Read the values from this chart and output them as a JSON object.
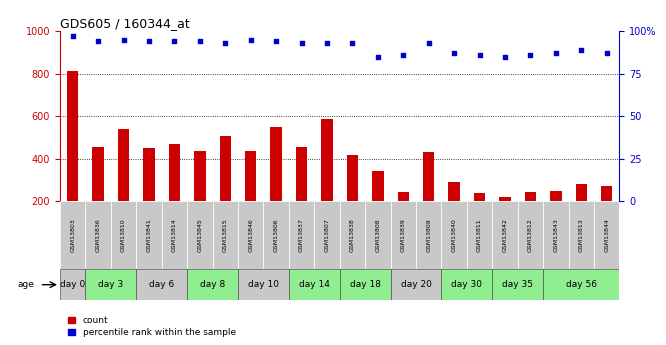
{
  "title": "GDS605 / 160344_at",
  "samples": [
    "GSM13803",
    "GSM13836",
    "GSM13810",
    "GSM13841",
    "GSM13814",
    "GSM13845",
    "GSM13815",
    "GSM13846",
    "GSM13806",
    "GSM13837",
    "GSM13807",
    "GSM13838",
    "GSM13808",
    "GSM13839",
    "GSM13809",
    "GSM13840",
    "GSM13811",
    "GSM13842",
    "GSM13812",
    "GSM13843",
    "GSM13813",
    "GSM13844"
  ],
  "counts": [
    810,
    455,
    540,
    450,
    470,
    435,
    505,
    435,
    550,
    455,
    585,
    415,
    340,
    245,
    430,
    290,
    240,
    220,
    245,
    250,
    280,
    270
  ],
  "percentiles": [
    97,
    94,
    95,
    94,
    94,
    94,
    93,
    95,
    94,
    93,
    93,
    93,
    85,
    86,
    93,
    87,
    86,
    85,
    86,
    87,
    89,
    87
  ],
  "age_groups": [
    {
      "label": "day 0",
      "start": 0,
      "end": 1,
      "color": "#c8c8c8"
    },
    {
      "label": "day 3",
      "start": 1,
      "end": 3,
      "color": "#90ee90"
    },
    {
      "label": "day 6",
      "start": 3,
      "end": 5,
      "color": "#c8c8c8"
    },
    {
      "label": "day 8",
      "start": 5,
      "end": 7,
      "color": "#90ee90"
    },
    {
      "label": "day 10",
      "start": 7,
      "end": 9,
      "color": "#c8c8c8"
    },
    {
      "label": "day 14",
      "start": 9,
      "end": 11,
      "color": "#90ee90"
    },
    {
      "label": "day 18",
      "start": 11,
      "end": 13,
      "color": "#90ee90"
    },
    {
      "label": "day 20",
      "start": 13,
      "end": 15,
      "color": "#c8c8c8"
    },
    {
      "label": "day 30",
      "start": 15,
      "end": 17,
      "color": "#90ee90"
    },
    {
      "label": "day 35",
      "start": 17,
      "end": 19,
      "color": "#90ee90"
    },
    {
      "label": "day 56",
      "start": 19,
      "end": 22,
      "color": "#90ee90"
    }
  ],
  "sample_box_color": "#c8c8c8",
  "bar_color": "#cc0000",
  "dot_color": "#0000cc",
  "ylim_left": [
    200,
    1000
  ],
  "ylim_right": [
    0,
    100
  ],
  "yticks_left": [
    200,
    400,
    600,
    800,
    1000
  ],
  "yticks_right": [
    0,
    25,
    50,
    75,
    100
  ],
  "yticklabels_right": [
    "0",
    "25",
    "50",
    "75",
    "100%"
  ],
  "grid_lines": [
    400,
    600,
    800
  ],
  "legend_count_label": "count",
  "legend_pct_label": "percentile rank within the sample",
  "age_label": "age",
  "background_color": "#ffffff",
  "plot_bg_color": "#ffffff",
  "grid_color": "#000000"
}
